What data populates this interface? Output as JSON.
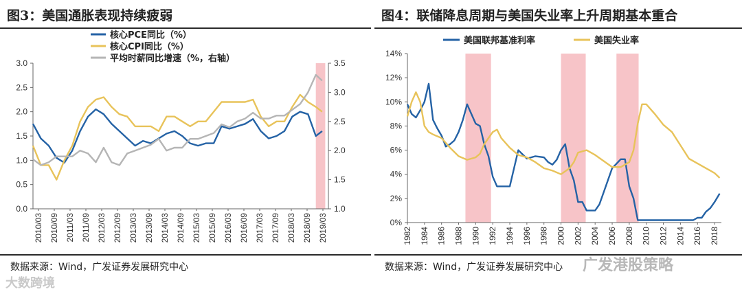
{
  "left": {
    "title": "图3：美国通胀表现持续疲弱",
    "source": "数据来源：Wind，广发证券发展研究中心",
    "chart_data": {
      "type": "line",
      "title": "美国通胀表现持续疲弱",
      "x_labels": [
        "2010/03",
        "2010/09",
        "2011/03",
        "2011/09",
        "2012/03",
        "2012/09",
        "2013/03",
        "2013/09",
        "2014/03",
        "2014/09",
        "2015/03",
        "2015/09",
        "2016/03",
        "2016/09",
        "2017/03",
        "2017/09",
        "2018/03",
        "2018/09",
        "2019/03"
      ],
      "x_range": [
        2010.0,
        2019.4
      ],
      "ylim_left": [
        0.0,
        3.0
      ],
      "yticks_left": [
        "0.0",
        "0.5",
        "1.0",
        "1.5",
        "2.0",
        "2.5",
        "3.0"
      ],
      "ylim_right": [
        1.0,
        3.5
      ],
      "yticks_right": [
        "1.0",
        "1.5",
        "2.0",
        "2.5",
        "3.0",
        "3.5"
      ],
      "shaded_regions": [
        [
          2019.0,
          2019.3
        ]
      ],
      "series": [
        {
          "name": "核心PCE同比（%）",
          "axis": "left",
          "color": "#2462a5",
          "x": [
            2010.0,
            2010.25,
            2010.5,
            2010.75,
            2011.0,
            2011.25,
            2011.5,
            2011.75,
            2012.0,
            2012.25,
            2012.5,
            2012.75,
            2013.0,
            2013.25,
            2013.5,
            2013.75,
            2014.0,
            2014.25,
            2014.5,
            2014.75,
            2015.0,
            2015.25,
            2015.5,
            2015.75,
            2016.0,
            2016.25,
            2016.5,
            2016.75,
            2017.0,
            2017.25,
            2017.5,
            2017.75,
            2018.0,
            2018.25,
            2018.5,
            2018.75,
            2019.0,
            2019.2
          ],
          "values": [
            1.75,
            1.45,
            1.3,
            1.05,
            0.95,
            1.2,
            1.6,
            1.9,
            2.05,
            1.95,
            1.75,
            1.6,
            1.45,
            1.3,
            1.4,
            1.35,
            1.45,
            1.55,
            1.6,
            1.5,
            1.35,
            1.3,
            1.35,
            1.35,
            1.7,
            1.65,
            1.7,
            1.75,
            1.85,
            1.6,
            1.45,
            1.5,
            1.6,
            1.9,
            2.0,
            1.95,
            1.5,
            1.6
          ]
        },
        {
          "name": "核心CPI同比（%）",
          "axis": "left",
          "color": "#e8c35a",
          "x": [
            2010.0,
            2010.25,
            2010.5,
            2010.75,
            2011.0,
            2011.25,
            2011.5,
            2011.75,
            2012.0,
            2012.25,
            2012.5,
            2012.75,
            2013.0,
            2013.25,
            2013.5,
            2013.75,
            2014.0,
            2014.25,
            2014.5,
            2014.75,
            2015.0,
            2015.25,
            2015.5,
            2015.75,
            2016.0,
            2016.25,
            2016.5,
            2016.75,
            2017.0,
            2017.25,
            2017.5,
            2017.75,
            2018.0,
            2018.25,
            2018.5,
            2018.75,
            2019.0,
            2019.2
          ],
          "values": [
            1.3,
            0.9,
            0.9,
            0.6,
            1.0,
            1.3,
            1.8,
            2.1,
            2.25,
            2.3,
            2.1,
            1.95,
            1.9,
            1.7,
            1.7,
            1.7,
            1.6,
            1.9,
            1.9,
            1.8,
            1.7,
            1.8,
            1.8,
            2.0,
            2.2,
            2.2,
            2.2,
            2.2,
            2.25,
            1.9,
            1.7,
            1.8,
            1.8,
            2.1,
            2.35,
            2.2,
            2.1,
            2.0
          ]
        },
        {
          "name": "平均时薪同比增速（%，右轴）",
          "axis": "right",
          "color": "#b5b5b5",
          "x": [
            2010.0,
            2010.25,
            2010.5,
            2010.75,
            2011.0,
            2011.25,
            2011.5,
            2011.75,
            2012.0,
            2012.25,
            2012.5,
            2012.75,
            2013.0,
            2013.25,
            2013.5,
            2013.75,
            2014.0,
            2014.25,
            2014.5,
            2014.75,
            2015.0,
            2015.25,
            2015.5,
            2015.75,
            2016.0,
            2016.25,
            2016.5,
            2016.75,
            2017.0,
            2017.25,
            2017.5,
            2017.75,
            2018.0,
            2018.25,
            2018.5,
            2018.75,
            2019.0,
            2019.2
          ],
          "values": [
            1.85,
            1.75,
            1.8,
            1.9,
            1.9,
            1.9,
            2.0,
            1.95,
            1.8,
            2.05,
            1.8,
            1.75,
            1.95,
            2.0,
            2.05,
            2.1,
            2.2,
            2.0,
            2.05,
            2.05,
            2.2,
            2.2,
            2.25,
            2.3,
            2.45,
            2.4,
            2.5,
            2.55,
            2.65,
            2.55,
            2.55,
            2.6,
            2.6,
            2.7,
            2.8,
            3.0,
            3.3,
            3.2
          ]
        }
      ]
    }
  },
  "right": {
    "title": "图4：联储降息周期与美国失业率上升周期基本重合",
    "source": "数据来源：Wind，广发证券发展研究中心",
    "chart_data": {
      "type": "line",
      "title": "联储降息周期与美国失业率上升周期基本重合",
      "x_labels": [
        "1982",
        "1984",
        "1986",
        "1988",
        "1990",
        "1992",
        "1994",
        "1996",
        "1998",
        "2000",
        "2002",
        "2004",
        "2006",
        "2008",
        "2010",
        "2012",
        "2014",
        "2016",
        "2018"
      ],
      "x_range": [
        1982.0,
        2018.8
      ],
      "ylim": [
        0,
        14
      ],
      "yticks": [
        "0%",
        "2%",
        "4%",
        "6%",
        "8%",
        "10%",
        "12%",
        "14%"
      ],
      "shaded_regions": [
        [
          1988.8,
          1991.8
        ],
        [
          2000.0,
          2002.9
        ],
        [
          2006.5,
          2009.1
        ]
      ],
      "series": [
        {
          "name": "美国联邦基准利率",
          "color": "#2462a5",
          "x": [
            1982.0,
            1982.5,
            1983.0,
            1983.5,
            1984.0,
            1984.5,
            1985.0,
            1985.5,
            1986.0,
            1986.5,
            1987.0,
            1987.5,
            1988.0,
            1988.5,
            1989.0,
            1989.5,
            1990.0,
            1990.5,
            1991.0,
            1991.5,
            1992.0,
            1992.5,
            1993.0,
            1994.0,
            1994.5,
            1995.0,
            1996.0,
            1997.0,
            1998.0,
            1998.5,
            1999.0,
            1999.5,
            2000.0,
            2000.5,
            2001.0,
            2001.5,
            2002.0,
            2002.5,
            2003.0,
            2004.0,
            2004.5,
            2005.0,
            2005.5,
            2006.0,
            2007.0,
            2007.5,
            2008.0,
            2008.5,
            2009.0,
            2012.0,
            2015.5,
            2016.0,
            2016.5,
            2017.0,
            2017.5,
            2018.0,
            2018.6
          ],
          "values": [
            9.8,
            9.0,
            8.7,
            9.3,
            10.0,
            11.5,
            8.5,
            7.8,
            7.2,
            6.3,
            6.5,
            6.8,
            7.5,
            8.5,
            9.8,
            9.0,
            8.2,
            8.0,
            6.5,
            5.5,
            3.8,
            3.0,
            3.0,
            3.0,
            4.5,
            6.0,
            5.3,
            5.5,
            5.4,
            5.0,
            4.8,
            5.2,
            6.0,
            6.5,
            4.5,
            3.5,
            1.7,
            1.7,
            1.0,
            1.0,
            1.5,
            2.5,
            3.5,
            4.5,
            5.25,
            5.25,
            3.0,
            2.0,
            0.2,
            0.2,
            0.2,
            0.4,
            0.4,
            0.9,
            1.2,
            1.7,
            2.4
          ]
        },
        {
          "name": "美国失业率",
          "color": "#e8c35a",
          "x": [
            1982.0,
            1982.5,
            1983.0,
            1983.5,
            1984.0,
            1984.5,
            1985.0,
            1986.0,
            1987.0,
            1988.0,
            1989.0,
            1990.0,
            1990.5,
            1991.0,
            1991.5,
            1992.0,
            1992.5,
            1993.0,
            1994.0,
            1995.0,
            1996.0,
            1997.0,
            1998.0,
            1999.0,
            2000.0,
            2001.0,
            2001.5,
            2002.0,
            2002.5,
            2003.0,
            2004.0,
            2005.0,
            2006.0,
            2007.0,
            2008.0,
            2008.5,
            2009.0,
            2009.5,
            2010.0,
            2011.0,
            2012.0,
            2013.0,
            2014.0,
            2015.0,
            2016.0,
            2017.0,
            2017.5,
            2018.0,
            2018.6
          ],
          "values": [
            8.8,
            10.0,
            10.8,
            10.0,
            8.0,
            7.5,
            7.3,
            7.0,
            6.2,
            5.5,
            5.2,
            5.4,
            5.7,
            6.5,
            7.0,
            7.5,
            7.7,
            7.0,
            6.2,
            5.6,
            5.4,
            5.0,
            4.5,
            4.3,
            4.0,
            4.5,
            5.0,
            5.8,
            5.9,
            6.0,
            5.6,
            5.1,
            4.6,
            4.6,
            5.0,
            6.0,
            8.2,
            9.8,
            9.8,
            9.0,
            8.1,
            7.5,
            6.4,
            5.3,
            4.9,
            4.5,
            4.3,
            4.1,
            3.7
          ]
        }
      ]
    }
  },
  "watermarks": {
    "left": "大数跨境",
    "right": "广发港股策略"
  }
}
